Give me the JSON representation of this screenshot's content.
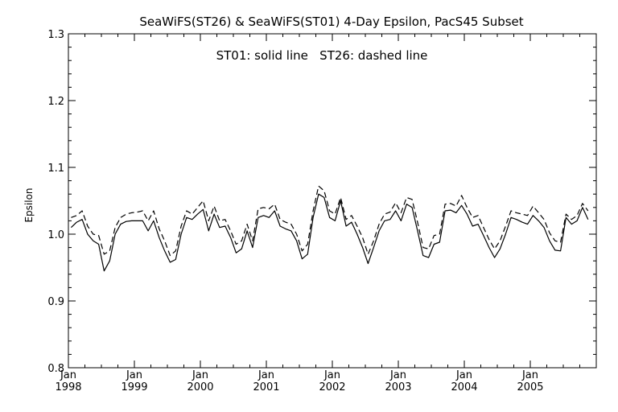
{
  "chart_data": {
    "type": "line",
    "title": "SeaWiFS(ST26) & SeaWiFS(ST01) 4-Day Epsilon, PacS45 Subset",
    "annotation": "ST01: solid line   ST26: dashed line",
    "xlabel": "",
    "ylabel": "Epsilon",
    "xlim": [
      "1998-01",
      "2005-12"
    ],
    "ylim": [
      0.8,
      1.3
    ],
    "yticks": [
      "0.8",
      "0.9",
      "1.0",
      "1.1",
      "1.2",
      "1.3"
    ],
    "xticks": [
      {
        "month": "Jan",
        "year": "1998"
      },
      {
        "month": "Jan",
        "year": "1999"
      },
      {
        "month": "Jan",
        "year": "2000"
      },
      {
        "month": "Jan",
        "year": "2001"
      },
      {
        "month": "Jan",
        "year": "2002"
      },
      {
        "month": "Jan",
        "year": "2003"
      },
      {
        "month": "Jan",
        "year": "2004"
      },
      {
        "month": "Jan",
        "year": "2005"
      }
    ],
    "grid": false,
    "series": [
      {
        "name": "ST01",
        "style": "solid",
        "color": "#000000",
        "points": [
          [
            "1998-01",
            1.01
          ],
          [
            "1998-02",
            1.018
          ],
          [
            "1998-03",
            1.022
          ],
          [
            "1998-04",
            1.0
          ],
          [
            "1998-05",
            0.99
          ],
          [
            "1998-06",
            0.985
          ],
          [
            "1998-07",
            0.945
          ],
          [
            "1998-08",
            0.96
          ],
          [
            "1998-09",
            1.0
          ],
          [
            "1998-10",
            1.015
          ],
          [
            "1998-11",
            1.019
          ],
          [
            "1998-12",
            1.02
          ],
          [
            "1999-01",
            1.02
          ],
          [
            "1999-02",
            1.02
          ],
          [
            "1999-03",
            1.005
          ],
          [
            "1999-04",
            1.02
          ],
          [
            "1999-05",
            0.995
          ],
          [
            "1999-06",
            0.975
          ],
          [
            "1999-07",
            0.958
          ],
          [
            "1999-08",
            0.962
          ],
          [
            "1999-09",
            1.0
          ],
          [
            "1999-10",
            1.025
          ],
          [
            "1999-11",
            1.022
          ],
          [
            "1999-12",
            1.03
          ],
          [
            "2000-01",
            1.037
          ],
          [
            "2000-02",
            1.005
          ],
          [
            "2000-03",
            1.03
          ],
          [
            "2000-04",
            1.01
          ],
          [
            "2000-05",
            1.012
          ],
          [
            "2000-06",
            0.995
          ],
          [
            "2000-07",
            0.972
          ],
          [
            "2000-08",
            0.978
          ],
          [
            "2000-09",
            1.005
          ],
          [
            "2000-10",
            0.98
          ],
          [
            "2000-11",
            1.025
          ],
          [
            "2000-12",
            1.028
          ],
          [
            "2001-01",
            1.025
          ],
          [
            "2001-02",
            1.035
          ],
          [
            "2001-03",
            1.012
          ],
          [
            "2001-04",
            1.008
          ],
          [
            "2001-05",
            1.005
          ],
          [
            "2001-06",
            0.99
          ],
          [
            "2001-07",
            0.963
          ],
          [
            "2001-08",
            0.97
          ],
          [
            "2001-09",
            1.025
          ],
          [
            "2001-10",
            1.06
          ],
          [
            "2001-11",
            1.055
          ],
          [
            "2001-12",
            1.025
          ],
          [
            "2002-01",
            1.02
          ],
          [
            "2002-02",
            1.05
          ],
          [
            "2002-03",
            1.012
          ],
          [
            "2002-04",
            1.018
          ],
          [
            "2002-05",
            1.0
          ],
          [
            "2002-06",
            0.98
          ],
          [
            "2002-07",
            0.956
          ],
          [
            "2002-08",
            0.98
          ],
          [
            "2002-09",
            1.005
          ],
          [
            "2002-10",
            1.02
          ],
          [
            "2002-11",
            1.022
          ],
          [
            "2002-12",
            1.035
          ],
          [
            "2003-01",
            1.02
          ],
          [
            "2003-02",
            1.045
          ],
          [
            "2003-03",
            1.04
          ],
          [
            "2003-04",
            1.005
          ],
          [
            "2003-05",
            0.968
          ],
          [
            "2003-06",
            0.965
          ],
          [
            "2003-07",
            0.985
          ],
          [
            "2003-08",
            0.988
          ],
          [
            "2003-09",
            1.035
          ],
          [
            "2003-10",
            1.036
          ],
          [
            "2003-11",
            1.032
          ],
          [
            "2003-12",
            1.043
          ],
          [
            "2004-01",
            1.03
          ],
          [
            "2004-02",
            1.012
          ],
          [
            "2004-03",
            1.015
          ],
          [
            "2004-04",
            0.998
          ],
          [
            "2004-05",
            0.98
          ],
          [
            "2004-06",
            0.965
          ],
          [
            "2004-07",
            0.978
          ],
          [
            "2004-08",
            1.0
          ],
          [
            "2004-09",
            1.025
          ],
          [
            "2004-10",
            1.022
          ],
          [
            "2004-11",
            1.018
          ],
          [
            "2004-12",
            1.015
          ],
          [
            "2005-01",
            1.028
          ],
          [
            "2005-02",
            1.02
          ],
          [
            "2005-03",
            1.01
          ],
          [
            "2005-04",
            0.99
          ],
          [
            "2005-05",
            0.976
          ],
          [
            "2005-06",
            0.975
          ],
          [
            "2005-07",
            1.025
          ],
          [
            "2005-08",
            1.015
          ],
          [
            "2005-09",
            1.02
          ],
          [
            "2005-10",
            1.04
          ],
          [
            "2005-11",
            1.022
          ]
        ]
      },
      {
        "name": "ST26",
        "style": "dashed",
        "color": "#000000",
        "points": [
          [
            "1998-01",
            1.025
          ],
          [
            "1998-02",
            1.028
          ],
          [
            "1998-03",
            1.035
          ],
          [
            "1998-04",
            1.012
          ],
          [
            "1998-05",
            1.0
          ],
          [
            "1998-06",
            0.998
          ],
          [
            "1998-07",
            0.97
          ],
          [
            "1998-08",
            0.975
          ],
          [
            "1998-09",
            1.01
          ],
          [
            "1998-10",
            1.025
          ],
          [
            "1998-11",
            1.03
          ],
          [
            "1998-12",
            1.032
          ],
          [
            "1999-01",
            1.033
          ],
          [
            "1999-02",
            1.035
          ],
          [
            "1999-03",
            1.02
          ],
          [
            "1999-04",
            1.035
          ],
          [
            "1999-05",
            1.008
          ],
          [
            "1999-06",
            0.99
          ],
          [
            "1999-07",
            0.968
          ],
          [
            "1999-08",
            0.975
          ],
          [
            "1999-09",
            1.012
          ],
          [
            "1999-10",
            1.035
          ],
          [
            "1999-11",
            1.03
          ],
          [
            "1999-12",
            1.04
          ],
          [
            "2000-01",
            1.05
          ],
          [
            "2000-02",
            1.02
          ],
          [
            "2000-03",
            1.042
          ],
          [
            "2000-04",
            1.02
          ],
          [
            "2000-05",
            1.022
          ],
          [
            "2000-06",
            1.005
          ],
          [
            "2000-07",
            0.985
          ],
          [
            "2000-08",
            0.99
          ],
          [
            "2000-09",
            1.015
          ],
          [
            "2000-10",
            0.99
          ],
          [
            "2000-11",
            1.038
          ],
          [
            "2000-12",
            1.04
          ],
          [
            "2001-01",
            1.038
          ],
          [
            "2001-02",
            1.045
          ],
          [
            "2001-03",
            1.022
          ],
          [
            "2001-04",
            1.018
          ],
          [
            "2001-05",
            1.015
          ],
          [
            "2001-06",
            1.0
          ],
          [
            "2001-07",
            0.975
          ],
          [
            "2001-08",
            0.985
          ],
          [
            "2001-09",
            1.035
          ],
          [
            "2001-10",
            1.072
          ],
          [
            "2001-11",
            1.065
          ],
          [
            "2001-12",
            1.035
          ],
          [
            "2002-01",
            1.03
          ],
          [
            "2002-02",
            1.055
          ],
          [
            "2002-03",
            1.022
          ],
          [
            "2002-04",
            1.028
          ],
          [
            "2002-05",
            1.012
          ],
          [
            "2002-06",
            0.995
          ],
          [
            "2002-07",
            0.97
          ],
          [
            "2002-08",
            0.99
          ],
          [
            "2002-09",
            1.015
          ],
          [
            "2002-10",
            1.03
          ],
          [
            "2002-11",
            1.033
          ],
          [
            "2002-12",
            1.047
          ],
          [
            "2003-01",
            1.032
          ],
          [
            "2003-02",
            1.055
          ],
          [
            "2003-03",
            1.052
          ],
          [
            "2003-04",
            1.018
          ],
          [
            "2003-05",
            0.98
          ],
          [
            "2003-06",
            0.978
          ],
          [
            "2003-07",
            0.998
          ],
          [
            "2003-08",
            1.0
          ],
          [
            "2003-09",
            1.045
          ],
          [
            "2003-10",
            1.046
          ],
          [
            "2003-11",
            1.042
          ],
          [
            "2003-12",
            1.058
          ],
          [
            "2004-01",
            1.04
          ],
          [
            "2004-02",
            1.025
          ],
          [
            "2004-03",
            1.028
          ],
          [
            "2004-04",
            1.01
          ],
          [
            "2004-05",
            0.992
          ],
          [
            "2004-06",
            0.978
          ],
          [
            "2004-07",
            0.99
          ],
          [
            "2004-08",
            1.012
          ],
          [
            "2004-09",
            1.035
          ],
          [
            "2004-10",
            1.032
          ],
          [
            "2004-11",
            1.03
          ],
          [
            "2004-12",
            1.028
          ],
          [
            "2005-01",
            1.042
          ],
          [
            "2005-02",
            1.032
          ],
          [
            "2005-03",
            1.022
          ],
          [
            "2005-04",
            1.002
          ],
          [
            "2005-05",
            0.99
          ],
          [
            "2005-06",
            0.988
          ],
          [
            "2005-07",
            1.03
          ],
          [
            "2005-08",
            1.022
          ],
          [
            "2005-09",
            1.028
          ],
          [
            "2005-10",
            1.046
          ],
          [
            "2005-11",
            1.035
          ]
        ]
      }
    ]
  }
}
